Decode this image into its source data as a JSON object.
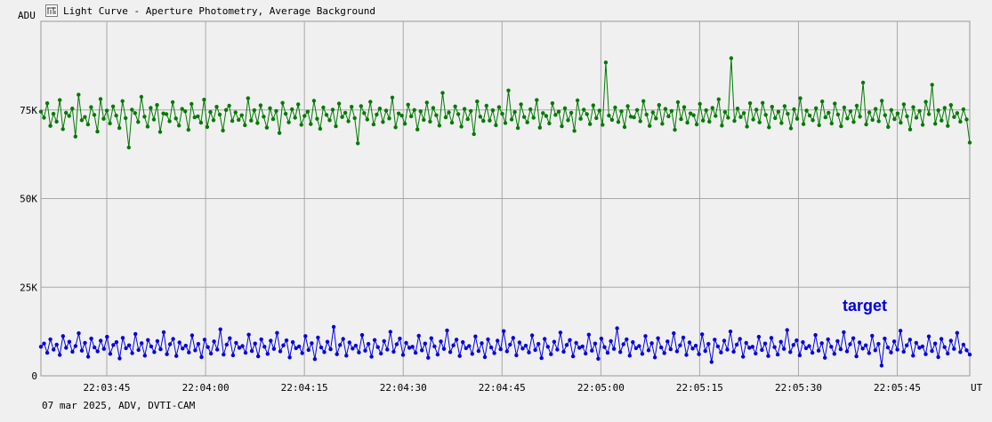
{
  "window": {
    "title": "Light Curve - Aperture Photometry, Average Background",
    "footer": "07 mar 2025, ADV, DVTI-CAM"
  },
  "icons": {
    "app": "light-curve-app-icon"
  },
  "chart_data": {
    "type": "line",
    "title": "Light Curve - Aperture Photometry, Average Background",
    "ylabel": "ADU",
    "xlabel": "UT",
    "ylim": [
      0,
      100000
    ],
    "yticks": [
      0,
      25000,
      50000,
      75000
    ],
    "yticklabels": [
      "0",
      "25K",
      "50K",
      "75K"
    ],
    "xlim": [
      "22:03:35",
      "22:05:56"
    ],
    "xticks": [
      "22:03:45",
      "22:04:00",
      "22:04:15",
      "22:04:30",
      "22:04:45",
      "22:05:00",
      "22:05:15",
      "22:05:30",
      "22:05:45"
    ],
    "grid": true,
    "series": [
      {
        "name": "",
        "color": "#007a00",
        "values": [
          74500,
          72800,
          76900,
          70500,
          73900,
          71700,
          77800,
          69600,
          74200,
          73300,
          75400,
          67500,
          79300,
          72100,
          73000,
          70900,
          75800,
          73600,
          68900,
          78100,
          72500,
          74800,
          71200,
          76000,
          73400,
          69900,
          77500,
          72700,
          64400,
          75100,
          74100,
          71600,
          78700,
          73100,
          70300,
          75600,
          72300,
          76400,
          68800,
          74000,
          73800,
          71800,
          77200,
          72600,
          70600,
          75300,
          74600,
          69400,
          76700,
          72900,
          73200,
          71400,
          77900,
          70200,
          74400,
          72100,
          75900,
          73700,
          69200,
          75000,
          76200,
          71900,
          74300,
          72200,
          73500,
          70700,
          78300,
          72000,
          74900,
          71300,
          76300,
          73100,
          70000,
          75500,
          72400,
          74700,
          68500,
          77000,
          73900,
          71500,
          75200,
          72800,
          76600,
          70800,
          73300,
          74500,
          71000,
          77600,
          72500,
          69700,
          75700,
          73600,
          72100,
          75100,
          70400,
          76800,
          73000,
          74200,
          71800,
          75900,
          72700,
          65600,
          76100,
          74100,
          72300,
          77300,
          70900,
          73700,
          75400,
          71600,
          74800,
          72600,
          78500,
          70100,
          74000,
          73400,
          71100,
          76500,
          73200,
          75000,
          69500,
          74600,
          72200,
          77100,
          71700,
          75600,
          73500,
          70600,
          79800,
          72900,
          74300,
          71400,
          76000,
          73800,
          70300,
          75300,
          72400,
          74700,
          68200,
          77400,
          73100,
          71900,
          76200,
          72000,
          74900,
          70700,
          75800,
          73900,
          71300,
          80500,
          72300,
          74400,
          69900,
          76600,
          73000,
          71500,
          75200,
          72800,
          77800,
          70000,
          74100,
          73300,
          71200,
          76900,
          73600,
          74500,
          70400,
          75500,
          72100,
          74200,
          69100,
          77700,
          72500,
          75100,
          73800,
          71000,
          76300,
          72700,
          74800,
          70800,
          88400,
          73400,
          72200,
          75700,
          71600,
          74600,
          70200,
          76100,
          73100,
          72900,
          75000,
          71800,
          77500,
          73700,
          70500,
          74300,
          72600,
          76400,
          71100,
          75300,
          73200,
          74700,
          69400,
          77200,
          72400,
          75800,
          71400,
          74000,
          73500,
          70900,
          76700,
          72000,
          74900,
          71700,
          75600,
          73300,
          78000,
          70600,
          74400,
          72800,
          89600,
          71900,
          75400,
          73000,
          74100,
          70300,
          76900,
          72300,
          75100,
          71500,
          77000,
          73600,
          70100,
          75900,
          72700,
          74500,
          71300,
          76100,
          73900,
          69800,
          75200,
          72500,
          78300,
          71000,
          74800,
          73400,
          72100,
          75500,
          70700,
          77400,
          72900,
          74200,
          71200,
          76800,
          73700,
          70400,
          75700,
          72600,
          74600,
          71600,
          76200,
          73100,
          82700,
          70900,
          74300,
          72200,
          75300,
          71800,
          77600,
          73500,
          70200,
          75000,
          72400,
          74000,
          71400,
          76600,
          73200,
          69500,
          75800,
          72800,
          74700,
          70800,
          77300,
          73800,
          82100,
          71100,
          74900,
          72000,
          75600,
          70500,
          76400,
          73000,
          74100,
          71700,
          75200,
          72300,
          65800
        ]
      },
      {
        "name": "target",
        "color": "#0000e6",
        "values": [
          8200,
          9100,
          6500,
          10300,
          7400,
          8800,
          5900,
          11200,
          7900,
          9600,
          6800,
          8400,
          12000,
          7100,
          9300,
          5400,
          10500,
          8000,
          6900,
          9900,
          7600,
          11000,
          6200,
          8700,
          9500,
          4900,
          10700,
          7800,
          8600,
          6400,
          11800,
          7300,
          9200,
          5700,
          10100,
          8300,
          6700,
          9800,
          7500,
          12300,
          6100,
          8900,
          10400,
          5600,
          9400,
          7700,
          8500,
          6600,
          11400,
          7200,
          9000,
          5300,
          10200,
          8100,
          6300,
          9700,
          7400,
          13100,
          6000,
          8800,
          10600,
          5800,
          9300,
          7900,
          8400,
          6500,
          11600,
          7000,
          9100,
          5500,
          10300,
          8200,
          6200,
          9900,
          7600,
          12100,
          6900,
          8600,
          10000,
          5200,
          9500,
          7800,
          8300,
          6400,
          11200,
          7300,
          9200,
          4700,
          10800,
          8000,
          6700,
          9600,
          7500,
          13800,
          6100,
          8700,
          10400,
          5700,
          9400,
          7700,
          8500,
          6600,
          11500,
          7100,
          9000,
          5400,
          10100,
          8100,
          6300,
          9800,
          7400,
          12400,
          6800,
          8900,
          10500,
          5900,
          9300,
          7900,
          8200,
          6500,
          11300,
          7200,
          9100,
          5100,
          10600,
          8300,
          6000,
          9700,
          7600,
          12800,
          6700,
          8600,
          10200,
          5600,
          9500,
          7800,
          8400,
          6200,
          11100,
          7000,
          9200,
          5300,
          10300,
          8000,
          6400,
          9900,
          7500,
          12600,
          6900,
          8800,
          10700,
          5800,
          9400,
          7700,
          8500,
          6600,
          11400,
          7300,
          9000,
          5000,
          10400,
          8200,
          6100,
          9600,
          7400,
          12200,
          6800,
          8700,
          10100,
          5500,
          9300,
          7900,
          8300,
          6300,
          11600,
          7100,
          9100,
          4800,
          10500,
          8100,
          6500,
          9800,
          7600,
          13400,
          6700,
          8900,
          10300,
          5700,
          9500,
          7800,
          8400,
          6200,
          11200,
          7200,
          9200,
          5200,
          10600,
          8000,
          6400,
          9700,
          7500,
          12000,
          6900,
          8600,
          10800,
          5900,
          9400,
          7700,
          8500,
          6100,
          11700,
          7000,
          9000,
          3900,
          10200,
          8300,
          6600,
          9900,
          7400,
          12500,
          6800,
          8800,
          10400,
          5400,
          9300,
          7900,
          8200,
          6300,
          11000,
          7300,
          9100,
          5600,
          10700,
          8100,
          6000,
          9600,
          7600,
          12900,
          6700,
          8700,
          10000,
          5800,
          9500,
          7800,
          8400,
          6500,
          11500,
          7100,
          9200,
          5100,
          10300,
          8200,
          6200,
          9800,
          7500,
          12300,
          6900,
          8900,
          10600,
          5500,
          9400,
          7700,
          8600,
          6400,
          11300,
          7200,
          9000,
          2900,
          10500,
          8000,
          6600,
          9700,
          7400,
          12700,
          6800,
          8600,
          10200,
          5700,
          9300,
          7900,
          8300,
          6100,
          11100,
          7000,
          9100,
          5300,
          10400,
          8100,
          6300,
          9900,
          7600,
          12100,
          6700,
          8800,
          7200,
          6000
        ]
      }
    ]
  }
}
